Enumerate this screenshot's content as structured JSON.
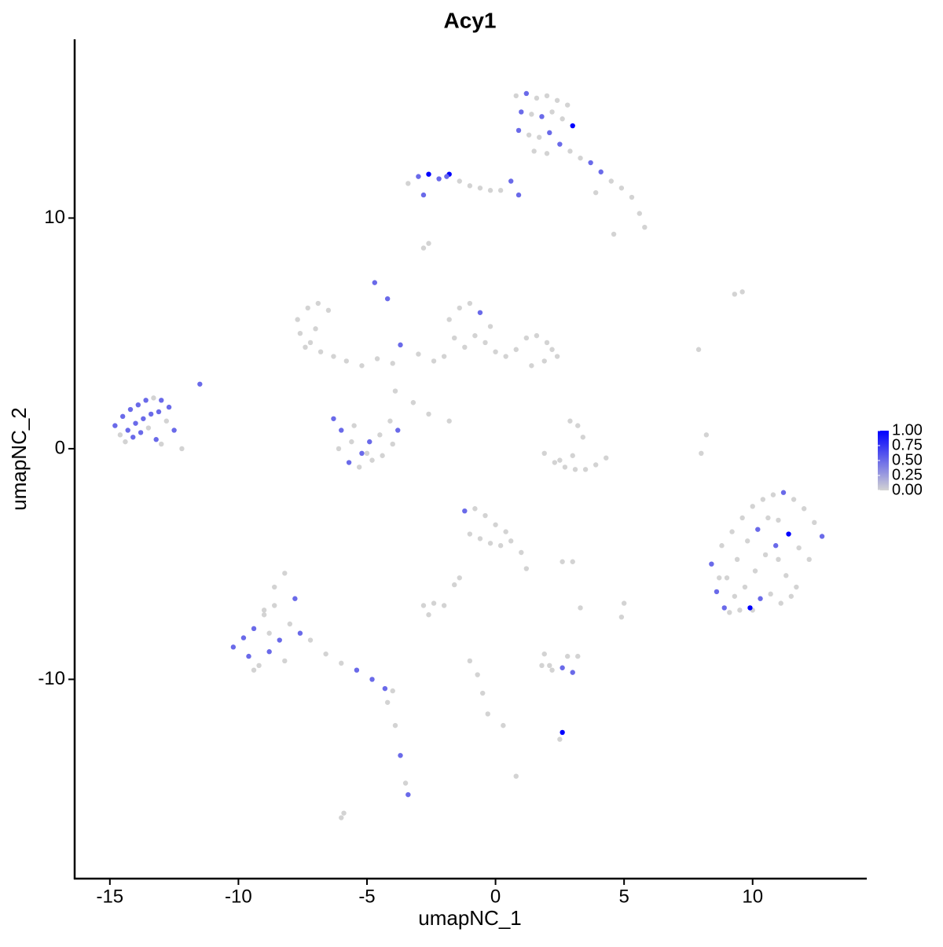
{
  "chart_data": {
    "type": "scatter",
    "title": "Acy1",
    "x_label": "umapNC_1",
    "y_label": "umapNC_2",
    "xlim": [
      -16.37,
      14.44
    ],
    "ylim": [
      -18.64,
      17.75
    ],
    "xticks": [
      -15,
      -10,
      -5,
      0,
      5,
      10
    ],
    "yticks": [
      -10,
      0,
      10
    ],
    "color_low": "#d3d3d3",
    "color_high": "#0000ff",
    "color_lim": [
      0,
      1
    ],
    "color_ticks": [
      {
        "value": 0,
        "label": "0.00"
      },
      {
        "value": 0.25,
        "label": "0.25"
      },
      {
        "value": 0.5,
        "label": "0.50"
      },
      {
        "value": 0.75,
        "label": "0.75"
      },
      {
        "value": 1,
        "label": "1.00"
      }
    ],
    "x": [
      0.8,
      1.2,
      1.6,
      2.0,
      2.4,
      2.8,
      1.0,
      1.4,
      1.8,
      2.2,
      2.6,
      3.0,
      0.9,
      1.3,
      1.7,
      2.1,
      2.5,
      1.5,
      2.0,
      2.9,
      3.3,
      3.7,
      4.1,
      4.5,
      4.9,
      5.3,
      5.6,
      5.8,
      4.6,
      3.9,
      -3.4,
      -3.0,
      -2.6,
      -2.2,
      -1.8,
      -1.4,
      -1.0,
      -0.6,
      -0.2,
      0.2,
      0.6,
      -2.8,
      -1.9,
      0.9,
      -14.8,
      -14.5,
      -14.2,
      -13.9,
      -13.6,
      -13.3,
      -13.0,
      -12.7,
      -14.6,
      -14.3,
      -14.0,
      -13.7,
      -13.4,
      -13.1,
      -12.8,
      -14.4,
      -14.1,
      -13.8,
      -13.5,
      -13.2,
      -12.5,
      -12.2,
      -11.5,
      -13.0,
      -7.7,
      -7.3,
      -6.9,
      -6.5,
      -7.6,
      -7.2,
      -6.8,
      -7.4,
      -7.0,
      -6.3,
      -5.8,
      -5.2,
      -4.6,
      -4.0,
      -1.8,
      -1.4,
      -1.0,
      -0.6,
      -0.2,
      -1.6,
      -1.2,
      -0.8,
      -0.4,
      0.0,
      -2.0,
      -2.4,
      -3.0,
      0.4,
      0.8,
      1.2,
      1.6,
      2.0,
      2.4,
      1.4,
      1.9,
      2.2,
      -4.7,
      -4.2,
      -3.7,
      -3.9,
      -3.2,
      -2.6,
      -1.8,
      -6.3,
      -6.0,
      -5.6,
      -5.2,
      -4.8,
      -4.4,
      -4.0,
      -6.1,
      -5.7,
      -5.3,
      -4.9,
      -4.5,
      -4.1,
      -5.5,
      -5.0,
      -3.8,
      1.9,
      2.3,
      2.7,
      3.1,
      3.5,
      3.9,
      4.3,
      2.5,
      3.0,
      3.4,
      3.2,
      2.9,
      7.9,
      9.3,
      9.6,
      8.0,
      8.2,
      8.4,
      8.8,
      9.2,
      9.6,
      10.0,
      10.4,
      10.8,
      11.2,
      11.6,
      12.0,
      12.4,
      12.7,
      8.6,
      9.0,
      9.4,
      9.8,
      10.2,
      10.6,
      11.0,
      11.4,
      11.8,
      12.2,
      8.9,
      9.3,
      9.7,
      10.1,
      10.5,
      10.9,
      11.3,
      11.7,
      9.1,
      9.5,
      9.9,
      10.3,
      10.7,
      11.1,
      11.5,
      10.0,
      11.0,
      8.7,
      -10.2,
      -9.8,
      -9.4,
      -9.0,
      -8.6,
      -8.2,
      -7.8,
      -9.6,
      -9.2,
      -8.8,
      -8.4,
      -8.0,
      -7.6,
      -9.0,
      -8.6,
      -8.2,
      -9.4,
      -8.8,
      -7.2,
      -6.6,
      -6.0,
      -5.4,
      -4.8,
      -4.3,
      -4.0,
      -4.2,
      -3.9,
      -3.7,
      -3.5,
      -3.4,
      -1.2,
      -0.8,
      -0.4,
      0.0,
      0.4,
      -1.0,
      -0.6,
      -0.2,
      0.2,
      0.6,
      1.0,
      1.2,
      -1.4,
      -1.6,
      -2.8,
      -2.4,
      -2.0,
      -2.6,
      2.6,
      3.0,
      -1.0,
      -0.7,
      -0.5,
      -0.3,
      0.3,
      0.8,
      2.1,
      2.6,
      1.8,
      2.2,
      2.6,
      3.0,
      3.2,
      1.9,
      2.5,
      2.8,
      -2.8,
      -2.6,
      -6.0,
      -5.9,
      3.3,
      4.9,
      5.0
    ],
    "y": [
      15.3,
      15.4,
      15.2,
      15.3,
      15.1,
      14.9,
      14.6,
      14.5,
      14.4,
      14.6,
      14.3,
      14.0,
      13.8,
      13.6,
      13.5,
      13.7,
      13.2,
      12.9,
      12.8,
      12.9,
      12.6,
      12.4,
      12.0,
      11.6,
      11.3,
      10.9,
      10.2,
      9.6,
      9.3,
      11.1,
      11.5,
      11.8,
      11.9,
      11.7,
      11.9,
      11.6,
      11.4,
      11.3,
      11.2,
      11.2,
      11.6,
      11.0,
      11.8,
      11.0,
      1.0,
      1.4,
      1.7,
      1.9,
      2.1,
      2.2,
      2.1,
      1.8,
      0.6,
      0.8,
      1.1,
      1.3,
      1.5,
      1.6,
      1.2,
      0.3,
      0.5,
      0.7,
      0.9,
      0.4,
      0.8,
      0.0,
      2.8,
      0.2,
      5.6,
      6.1,
      6.3,
      6.0,
      5.0,
      4.6,
      4.2,
      4.4,
      5.2,
      4.0,
      3.8,
      3.6,
      3.9,
      3.7,
      5.6,
      6.1,
      6.3,
      5.9,
      5.3,
      4.8,
      4.4,
      4.9,
      4.6,
      4.2,
      4.0,
      3.8,
      4.1,
      4.0,
      4.3,
      4.8,
      4.9,
      4.6,
      4.0,
      3.6,
      3.8,
      4.3,
      7.2,
      6.5,
      4.5,
      2.5,
      2.0,
      1.5,
      1.2,
      1.3,
      0.8,
      0.3,
      -0.2,
      -0.5,
      -0.3,
      0.2,
      0.0,
      -0.6,
      -0.8,
      0.3,
      0.6,
      1.2,
      1.0,
      -0.2,
      0.8,
      -0.2,
      -0.6,
      -0.8,
      -0.9,
      -0.9,
      -0.7,
      -0.4,
      -0.5,
      -0.3,
      0.5,
      1.0,
      1.2,
      4.3,
      6.7,
      6.8,
      -0.2,
      0.6,
      -5.0,
      -4.2,
      -3.6,
      -3.0,
      -2.5,
      -2.2,
      -2.0,
      -1.9,
      -2.2,
      -2.6,
      -3.2,
      -3.8,
      -6.2,
      -5.6,
      -4.8,
      -4.0,
      -3.5,
      -3.0,
      -3.1,
      -3.7,
      -4.3,
      -4.8,
      -6.9,
      -6.4,
      -6.0,
      -5.3,
      -4.6,
      -4.2,
      -5.5,
      -6.0,
      -7.1,
      -7.0,
      -6.9,
      -6.5,
      -6.3,
      -6.7,
      -6.4,
      -7.0,
      -4.8,
      -5.6,
      -8.6,
      -8.2,
      -7.8,
      -7.0,
      -6.0,
      -5.4,
      -6.5,
      -9.0,
      -9.4,
      -8.8,
      -8.3,
      -7.6,
      -8.0,
      -7.2,
      -6.8,
      -9.2,
      -9.6,
      -8.0,
      -8.3,
      -8.9,
      -9.3,
      -9.6,
      -10.0,
      -10.4,
      -10.5,
      -11.0,
      -12.0,
      -13.3,
      -14.5,
      -15.0,
      -2.7,
      -2.6,
      -2.9,
      -3.3,
      -3.6,
      -3.7,
      -3.9,
      -4.1,
      -4.2,
      -4.0,
      -4.5,
      -5.2,
      -5.6,
      -5.9,
      -6.8,
      -6.7,
      -6.8,
      -7.2,
      -4.9,
      -4.9,
      -9.2,
      -9.8,
      -10.6,
      -11.5,
      -12.0,
      -14.2,
      -9.4,
      -12.3,
      -9.4,
      -9.6,
      -9.5,
      -9.7,
      -9.0,
      -8.9,
      -12.6,
      -9.0,
      8.7,
      8.9,
      -16.0,
      -15.8,
      -6.9,
      -7.3,
      -6.7
    ],
    "values": [
      0,
      0.5,
      0,
      0,
      0,
      0,
      0.5,
      0,
      0.5,
      0,
      0,
      1,
      0.5,
      0,
      0,
      0.5,
      0.5,
      0,
      0,
      0,
      0,
      0.5,
      0.5,
      0,
      0,
      0,
      0,
      0,
      0,
      0,
      0,
      0.5,
      1,
      0.5,
      1,
      0,
      0,
      0,
      0,
      0,
      0.5,
      0.5,
      0.5,
      0.5,
      0.5,
      0.5,
      0.5,
      0.5,
      0.5,
      0,
      0.5,
      0.5,
      0,
      0.5,
      0.5,
      0.5,
      0.5,
      0.5,
      0,
      0,
      0.5,
      0.5,
      0,
      0.5,
      0.5,
      0,
      0.5,
      0,
      0,
      0,
      0,
      0,
      0,
      0,
      0,
      0,
      0,
      0,
      0,
      0,
      0,
      0,
      0,
      0,
      0,
      0.5,
      0,
      0,
      0,
      0,
      0,
      0,
      0,
      0,
      0,
      0,
      0,
      0,
      0,
      0,
      0,
      0,
      0,
      0,
      0.5,
      0.5,
      0.5,
      0,
      0,
      0,
      0,
      0.5,
      0.5,
      0,
      0.5,
      0,
      0,
      0,
      0,
      0.5,
      0,
      0.5,
      0,
      0,
      0,
      0,
      0.5,
      0,
      0,
      0,
      0,
      0,
      0,
      0,
      0,
      0,
      0,
      0,
      0,
      0,
      0,
      0,
      0,
      0,
      0.5,
      0,
      0,
      0,
      0,
      0,
      0,
      0.5,
      0,
      0,
      0,
      0.5,
      0.5,
      0,
      0,
      0,
      0.5,
      0,
      0,
      1,
      0,
      0,
      0.5,
      0,
      0,
      0,
      0,
      0.5,
      0,
      0,
      0,
      0,
      1,
      0.5,
      0,
      0,
      0,
      0,
      0,
      0,
      0.5,
      0.5,
      0.5,
      0,
      0,
      0,
      0.5,
      0.5,
      0,
      0.5,
      0.5,
      0,
      0.5,
      0,
      0,
      0,
      0,
      0,
      0,
      0,
      0,
      0.5,
      0.5,
      0.5,
      0,
      0,
      0,
      0.5,
      0,
      0.5,
      0.5,
      0,
      0,
      0,
      0,
      0,
      0,
      0,
      0,
      0,
      0,
      0,
      0,
      0,
      0,
      0,
      0,
      0,
      0,
      0,
      0,
      0,
      0,
      0,
      0,
      0,
      0,
      1,
      0,
      0,
      0.5,
      0.5,
      0,
      0,
      0,
      0,
      0,
      0,
      0,
      0,
      0,
      0,
      0
    ]
  }
}
